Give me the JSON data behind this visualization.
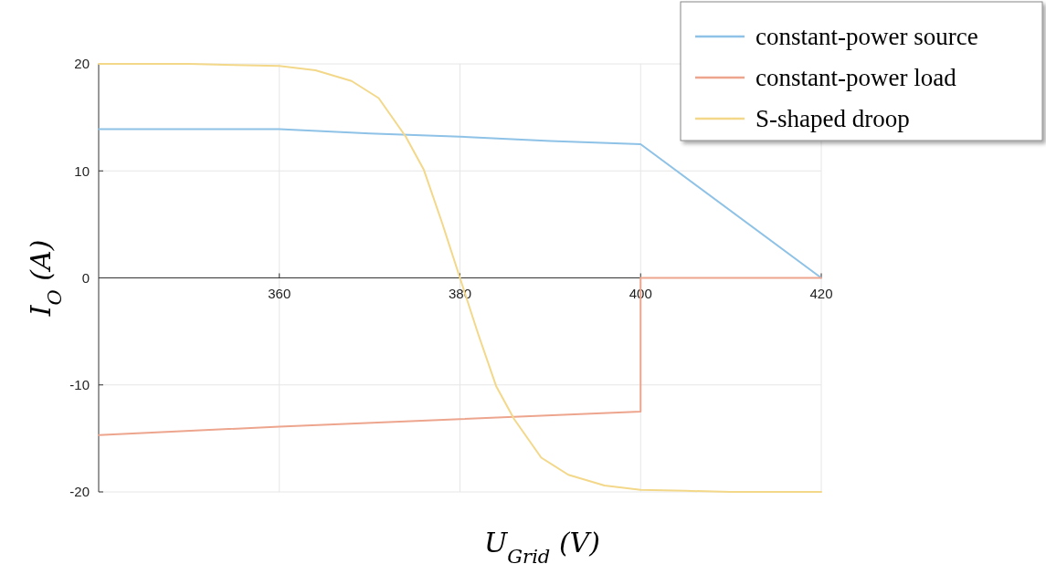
{
  "chart_data": {
    "type": "line",
    "xlabel": "U$_{Grid}$ (V)",
    "ylabel": "I$_{O}$ (A)",
    "xlim": [
      340,
      420
    ],
    "ylim": [
      -20,
      20
    ],
    "xticks": [
      360,
      380,
      400,
      420
    ],
    "yticks": [
      -20,
      -10,
      0,
      10,
      20
    ],
    "grid": true,
    "legend": "top right",
    "series": [
      {
        "name": "constant-power source",
        "color": "#8ec2e6",
        "x": [
          340,
          360,
          370,
          380,
          390,
          400,
          420
        ],
        "values": [
          13.9,
          13.9,
          13.5,
          13.2,
          12.8,
          12.5,
          0
        ]
      },
      {
        "name": "constant-power load",
        "color": "#eda58e",
        "x": [
          340,
          360,
          380,
          400,
          400,
          400,
          420
        ],
        "values": [
          -14.7,
          -13.9,
          -13.2,
          -12.5,
          -12.5,
          0,
          0
        ]
      },
      {
        "name": "S-shaped droop",
        "color": "#f3d88a",
        "x": [
          340,
          350,
          355,
          360,
          364,
          368,
          371,
          374,
          376,
          378,
          380,
          382,
          384,
          386,
          389,
          392,
          396,
          400,
          405,
          410,
          420
        ],
        "values": [
          20,
          20,
          19.9,
          19.8,
          19.4,
          18.4,
          16.8,
          13.2,
          10.1,
          5.2,
          0,
          -5.2,
          -10.1,
          -13.2,
          -16.8,
          -18.4,
          -19.4,
          -19.8,
          -19.9,
          -20,
          -20
        ]
      }
    ]
  }
}
